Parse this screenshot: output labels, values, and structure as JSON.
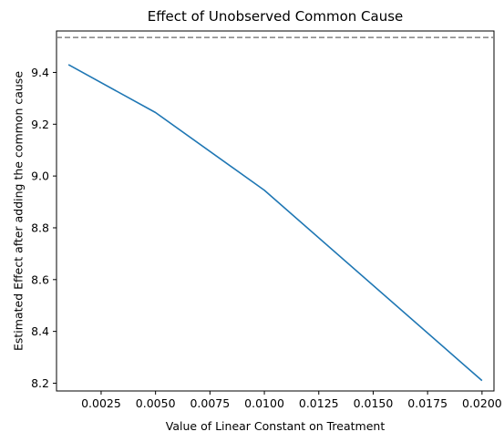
{
  "chart_data": {
    "type": "line",
    "title": "Effect of Unobserved Common Cause",
    "xlabel": "Value of Linear Constant on Treatment",
    "ylabel": "Estimated Effect after adding the common cause",
    "x": [
      0.001,
      0.005,
      0.01,
      0.02
    ],
    "series": [
      {
        "values": [
          9.43,
          9.245,
          8.945,
          8.21
        ],
        "color": "#1f77b4"
      }
    ],
    "reference_line": {
      "orientation": "horizontal",
      "y": 9.535,
      "style": "dashed",
      "color": "#808080"
    },
    "xlim": [
      0.00045,
      0.02055
    ],
    "ylim": [
      8.17,
      9.56
    ],
    "xticks": [
      0.0025,
      0.005,
      0.0075,
      0.01,
      0.0125,
      0.015,
      0.0175,
      0.02
    ],
    "xtick_labels": [
      "0.0025",
      "0.0050",
      "0.0075",
      "0.0100",
      "0.0125",
      "0.0150",
      "0.0175",
      "0.0200"
    ],
    "yticks": [
      8.2,
      8.4,
      8.6,
      8.8,
      9.0,
      9.2,
      9.4
    ],
    "ytick_labels": [
      "8.2",
      "8.4",
      "8.6",
      "8.8",
      "9.0",
      "9.2",
      "9.4"
    ],
    "grid": false,
    "legend": "none"
  }
}
